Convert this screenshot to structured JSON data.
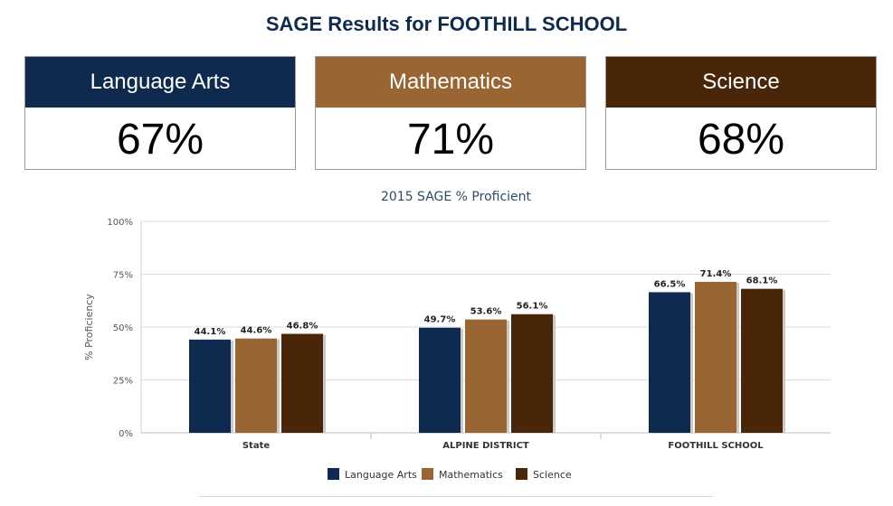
{
  "header": {
    "title": "SAGE Results for FOOTHILL SCHOOL"
  },
  "cards": [
    {
      "subject": "Language Arts",
      "value": "67%",
      "color": "#0f2a4f"
    },
    {
      "subject": "Mathematics",
      "value": "71%",
      "color": "#996633"
    },
    {
      "subject": "Science",
      "value": "68%",
      "color": "#4a2609"
    }
  ],
  "chart_data": {
    "type": "bar",
    "title": "2015 SAGE % Proficient",
    "xlabel": "",
    "ylabel": "% Proficiency",
    "ylim": [
      0,
      100
    ],
    "yticks": [
      "0%",
      "25%",
      "50%",
      "75%",
      "100%"
    ],
    "categories": [
      "State",
      "ALPINE DISTRICT",
      "FOOTHILL SCHOOL"
    ],
    "series": [
      {
        "name": "Language Arts",
        "values": [
          44.1,
          49.7,
          66.5
        ],
        "labels": [
          "44.1%",
          "49.7%",
          "66.5%"
        ],
        "color": "#0f2a4f"
      },
      {
        "name": "Mathematics",
        "values": [
          44.6,
          53.6,
          71.4
        ],
        "labels": [
          "44.6%",
          "53.6%",
          "71.4%"
        ],
        "color": "#996633"
      },
      {
        "name": "Science",
        "values": [
          46.8,
          56.1,
          68.1
        ],
        "labels": [
          "46.8%",
          "56.1%",
          "68.1%"
        ],
        "color": "#4a2609"
      }
    ],
    "grid": true,
    "legend": "bottom"
  }
}
